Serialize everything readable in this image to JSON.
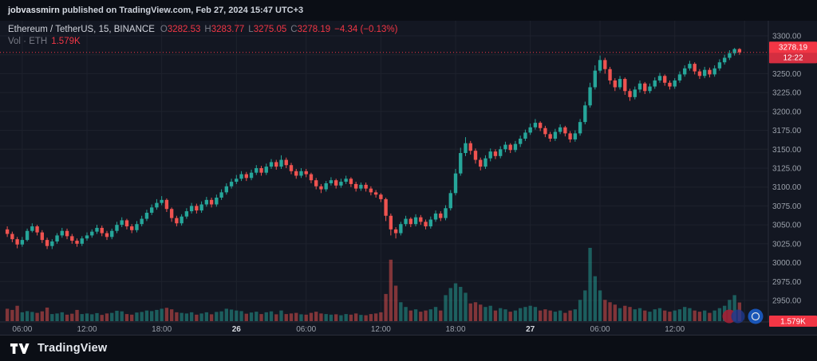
{
  "top_bar": {
    "username": "jobvassmirn",
    "text": " published on TradingView.com, Feb 27, 2024 15:47 UTC+3"
  },
  "legend": {
    "symbol": "Ethereum / TetherUS, 15, BINANCE",
    "o_label": "O",
    "o": "3282.53",
    "h_label": "H",
    "h": "3283.77",
    "l_label": "L",
    "l": "3275.05",
    "c_label": "C",
    "c": "3278.19",
    "change": "−4.34 (−0.13%)",
    "vol_label": "Vol · ETH",
    "vol_value": "1.579K"
  },
  "axis": {
    "last_price": "3278.19",
    "countdown": "12:22",
    "last_volume": "1.579K"
  },
  "footer": {
    "brand": "TradingView"
  },
  "colors": {
    "up": "#26a69a",
    "down": "#ef5350",
    "text_red": "#f23645",
    "volume_up": "rgba(38,166,154,0.5)",
    "volume_down": "rgba(239,83,80,0.5)",
    "grid": "#1e222d",
    "axis_line": "#2a2e39",
    "axis_text": "#9aa0aa",
    "day_text": "#d6d9df",
    "badge_bg": "#f23645",
    "badge_countdown_bg": "#d42e40"
  },
  "chart_data": {
    "type": "candlestick",
    "title": "Ethereum / TetherUS, 15, BINANCE",
    "symbol": "Ethereum / TetherUS",
    "interval": "15",
    "exchange": "BINANCE",
    "price_axis_range": [
      2950,
      3300
    ],
    "price_ticks": [
      3300,
      3275,
      3250,
      3225,
      3200,
      3175,
      3150,
      3125,
      3100,
      3075,
      3050,
      3025,
      3000,
      2975,
      2950
    ],
    "time_ticks": [
      {
        "i": 3,
        "label": "06:00",
        "day": false
      },
      {
        "i": 16,
        "label": "12:00",
        "day": false
      },
      {
        "i": 31,
        "label": "18:00",
        "day": false
      },
      {
        "i": 46,
        "label": "26",
        "day": true
      },
      {
        "i": 60,
        "label": "06:00",
        "day": false
      },
      {
        "i": 75,
        "label": "12:00",
        "day": false
      },
      {
        "i": 90,
        "label": "18:00",
        "day": false
      },
      {
        "i": 105,
        "label": "27",
        "day": true
      },
      {
        "i": 119,
        "label": "06:00",
        "day": false
      },
      {
        "i": 134,
        "label": "12:00",
        "day": false
      },
      {
        "i": 148,
        "label": "",
        "day": false
      }
    ],
    "volume_max": 6200,
    "last": {
      "open": 3282.53,
      "high": 3283.77,
      "low": 3275.05,
      "close": 3278.19,
      "change": -4.34,
      "change_pct": -0.13,
      "volume_display": "1.579K"
    },
    "candles": [
      [
        3044,
        3048,
        3034,
        3038,
        1050
      ],
      [
        3038,
        3041,
        3027,
        3031,
        950
      ],
      [
        3031,
        3034,
        3019,
        3024,
        1300
      ],
      [
        3024,
        3034,
        3021,
        3030,
        750
      ],
      [
        3030,
        3045,
        3028,
        3042,
        850
      ],
      [
        3042,
        3052,
        3040,
        3048,
        780
      ],
      [
        3048,
        3050,
        3036,
        3040,
        700
      ],
      [
        3040,
        3043,
        3026,
        3030,
        830
      ],
      [
        3030,
        3033,
        3018,
        3022,
        1150
      ],
      [
        3022,
        3031,
        3018,
        3028,
        600
      ],
      [
        3028,
        3039,
        3025,
        3036,
        650
      ],
      [
        3036,
        3046,
        3033,
        3042,
        750
      ],
      [
        3042,
        3045,
        3031,
        3035,
        550
      ],
      [
        3035,
        3038,
        3025,
        3029,
        630
      ],
      [
        3029,
        3032,
        3021,
        3025,
        950
      ],
      [
        3025,
        3035,
        3022,
        3032,
        600
      ],
      [
        3032,
        3040,
        3029,
        3036,
        650
      ],
      [
        3036,
        3044,
        3033,
        3041,
        580
      ],
      [
        3041,
        3050,
        3038,
        3046,
        680
      ],
      [
        3046,
        3049,
        3035,
        3039,
        530
      ],
      [
        3039,
        3042,
        3030,
        3034,
        650
      ],
      [
        3034,
        3045,
        3031,
        3042,
        700
      ],
      [
        3042,
        3054,
        3039,
        3050,
        880
      ],
      [
        3050,
        3060,
        3047,
        3056,
        830
      ],
      [
        3056,
        3058,
        3044,
        3048,
        600
      ],
      [
        3048,
        3051,
        3039,
        3043,
        550
      ],
      [
        3043,
        3055,
        3040,
        3051,
        730
      ],
      [
        3051,
        3062,
        3048,
        3058,
        780
      ],
      [
        3058,
        3070,
        3055,
        3066,
        900
      ],
      [
        3066,
        3077,
        3063,
        3073,
        850
      ],
      [
        3073,
        3084,
        3070,
        3079,
        950
      ],
      [
        3079,
        3088,
        3076,
        3083,
        1050
      ],
      [
        3083,
        3085,
        3067,
        3071,
        1130
      ],
      [
        3071,
        3073,
        3054,
        3059,
        1000
      ],
      [
        3059,
        3062,
        3048,
        3052,
        750
      ],
      [
        3052,
        3064,
        3049,
        3061,
        700
      ],
      [
        3061,
        3072,
        3058,
        3068,
        650
      ],
      [
        3068,
        3079,
        3065,
        3075,
        750
      ],
      [
        3075,
        3078,
        3065,
        3069,
        550
      ],
      [
        3069,
        3081,
        3066,
        3077,
        650
      ],
      [
        3077,
        3087,
        3074,
        3083,
        750
      ],
      [
        3083,
        3086,
        3073,
        3077,
        580
      ],
      [
        3077,
        3090,
        3074,
        3086,
        780
      ],
      [
        3086,
        3097,
        3083,
        3093,
        830
      ],
      [
        3093,
        3105,
        3090,
        3101,
        1050
      ],
      [
        3101,
        3111,
        3098,
        3107,
        980
      ],
      [
        3107,
        3116,
        3104,
        3111,
        900
      ],
      [
        3111,
        3121,
        3108,
        3117,
        850
      ],
      [
        3117,
        3120,
        3108,
        3112,
        630
      ],
      [
        3112,
        3123,
        3109,
        3119,
        730
      ],
      [
        3119,
        3129,
        3116,
        3125,
        800
      ],
      [
        3125,
        3128,
        3115,
        3119,
        600
      ],
      [
        3119,
        3131,
        3116,
        3127,
        750
      ],
      [
        3127,
        3137,
        3124,
        3133,
        830
      ],
      [
        3133,
        3136,
        3123,
        3127,
        580
      ],
      [
        3127,
        3142,
        3124,
        3136,
        900
      ],
      [
        3136,
        3139,
        3125,
        3129,
        600
      ],
      [
        3129,
        3132,
        3117,
        3121,
        650
      ],
      [
        3121,
        3124,
        3111,
        3115,
        700
      ],
      [
        3115,
        3125,
        3112,
        3121,
        580
      ],
      [
        3121,
        3124,
        3113,
        3117,
        550
      ],
      [
        3117,
        3119,
        3105,
        3109,
        700
      ],
      [
        3109,
        3112,
        3097,
        3101,
        800
      ],
      [
        3101,
        3104,
        3092,
        3097,
        650
      ],
      [
        3097,
        3108,
        3094,
        3105,
        600
      ],
      [
        3105,
        3113,
        3102,
        3109,
        550
      ],
      [
        3109,
        3111,
        3098,
        3102,
        580
      ],
      [
        3102,
        3111,
        3099,
        3107,
        500
      ],
      [
        3107,
        3115,
        3104,
        3111,
        600
      ],
      [
        3111,
        3113,
        3100,
        3104,
        550
      ],
      [
        3104,
        3107,
        3094,
        3098,
        650
      ],
      [
        3098,
        3106,
        3095,
        3103,
        530
      ],
      [
        3103,
        3106,
        3094,
        3098,
        500
      ],
      [
        3098,
        3101,
        3089,
        3093,
        600
      ],
      [
        3093,
        3096,
        3086,
        3090,
        650
      ],
      [
        3090,
        3092,
        3080,
        3084,
        750
      ],
      [
        3084,
        3086,
        3055,
        3062,
        2300
      ],
      [
        3062,
        3065,
        3036,
        3044,
        5200
      ],
      [
        3044,
        3047,
        3032,
        3039,
        3000
      ],
      [
        3039,
        3054,
        3036,
        3051,
        1600
      ],
      [
        3051,
        3062,
        3048,
        3058,
        1200
      ],
      [
        3058,
        3060,
        3047,
        3051,
        900
      ],
      [
        3051,
        3064,
        3048,
        3060,
        1000
      ],
      [
        3060,
        3063,
        3050,
        3054,
        800
      ],
      [
        3054,
        3057,
        3044,
        3048,
        900
      ],
      [
        3048,
        3061,
        3045,
        3057,
        1000
      ],
      [
        3057,
        3069,
        3054,
        3065,
        1200
      ],
      [
        3065,
        3068,
        3055,
        3059,
        900
      ],
      [
        3059,
        3076,
        3056,
        3072,
        2200
      ],
      [
        3072,
        3096,
        3069,
        3092,
        2800
      ],
      [
        3092,
        3124,
        3089,
        3118,
        3200
      ],
      [
        3118,
        3152,
        3115,
        3145,
        2900
      ],
      [
        3145,
        3166,
        3141,
        3158,
        2400
      ],
      [
        3158,
        3161,
        3143,
        3148,
        1500
      ],
      [
        3148,
        3151,
        3131,
        3136,
        1600
      ],
      [
        3136,
        3139,
        3122,
        3127,
        1400
      ],
      [
        3127,
        3142,
        3124,
        3138,
        1200
      ],
      [
        3138,
        3151,
        3134,
        3147,
        1300
      ],
      [
        3147,
        3150,
        3137,
        3141,
        900
      ],
      [
        3141,
        3154,
        3138,
        3150,
        1100
      ],
      [
        3150,
        3160,
        3146,
        3156,
        1000
      ],
      [
        3156,
        3158,
        3145,
        3149,
        800
      ],
      [
        3149,
        3161,
        3146,
        3157,
        900
      ],
      [
        3157,
        3168,
        3153,
        3164,
        1100
      ],
      [
        3164,
        3176,
        3161,
        3172,
        1200
      ],
      [
        3172,
        3184,
        3169,
        3179,
        1300
      ],
      [
        3179,
        3190,
        3176,
        3185,
        1200
      ],
      [
        3185,
        3187,
        3174,
        3178,
        900
      ],
      [
        3178,
        3181,
        3166,
        3170,
        1000
      ],
      [
        3170,
        3173,
        3160,
        3164,
        900
      ],
      [
        3164,
        3177,
        3161,
        3173,
        800
      ],
      [
        3173,
        3183,
        3170,
        3179,
        900
      ],
      [
        3179,
        3181,
        3167,
        3171,
        700
      ],
      [
        3171,
        3174,
        3159,
        3163,
        900
      ],
      [
        3163,
        3175,
        3160,
        3171,
        1000
      ],
      [
        3171,
        3190,
        3168,
        3186,
        1800
      ],
      [
        3186,
        3213,
        3183,
        3208,
        2600
      ],
      [
        3208,
        3238,
        3205,
        3232,
        6200
      ],
      [
        3232,
        3261,
        3229,
        3254,
        3800
      ],
      [
        3254,
        3274,
        3251,
        3268,
        2600
      ],
      [
        3268,
        3271,
        3250,
        3256,
        1800
      ],
      [
        3256,
        3259,
        3236,
        3241,
        1600
      ],
      [
        3241,
        3244,
        3227,
        3232,
        1400
      ],
      [
        3232,
        3247,
        3229,
        3243,
        1100
      ],
      [
        3243,
        3245,
        3222,
        3227,
        1300
      ],
      [
        3227,
        3230,
        3214,
        3219,
        1200
      ],
      [
        3219,
        3233,
        3216,
        3229,
        1000
      ],
      [
        3229,
        3241,
        3225,
        3237,
        1100
      ],
      [
        3237,
        3239,
        3223,
        3227,
        900
      ],
      [
        3227,
        3237,
        3224,
        3233,
        800
      ],
      [
        3233,
        3245,
        3230,
        3241,
        1000
      ],
      [
        3241,
        3251,
        3238,
        3247,
        1100
      ],
      [
        3247,
        3249,
        3234,
        3238,
        900
      ],
      [
        3238,
        3241,
        3229,
        3233,
        800
      ],
      [
        3233,
        3244,
        3230,
        3241,
        900
      ],
      [
        3241,
        3253,
        3238,
        3249,
        1000
      ],
      [
        3249,
        3261,
        3246,
        3257,
        1200
      ],
      [
        3257,
        3267,
        3254,
        3263,
        1100
      ],
      [
        3263,
        3265,
        3249,
        3253,
        900
      ],
      [
        3253,
        3256,
        3243,
        3247,
        800
      ],
      [
        3247,
        3259,
        3244,
        3255,
        900
      ],
      [
        3255,
        3258,
        3245,
        3249,
        700
      ],
      [
        3249,
        3261,
        3246,
        3257,
        900
      ],
      [
        3257,
        3269,
        3254,
        3265,
        1100
      ],
      [
        3265,
        3275,
        3262,
        3271,
        1300
      ],
      [
        3271,
        3281,
        3268,
        3277,
        1800
      ],
      [
        3277,
        3284,
        3274,
        3282.5,
        2200
      ],
      [
        3282.53,
        3283.77,
        3275.05,
        3278.19,
        1579
      ]
    ]
  }
}
